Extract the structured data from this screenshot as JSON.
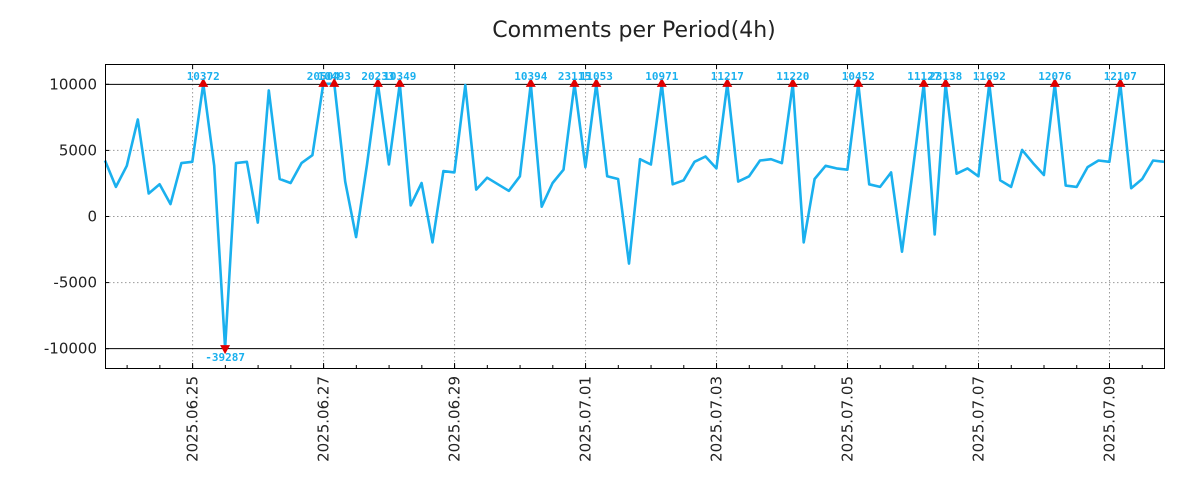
{
  "chart_data": {
    "type": "line",
    "title": "Comments per Period(4h)",
    "xlabel": "",
    "ylabel": "",
    "ylim": [
      -11500,
      11500
    ],
    "yticks": [
      -10000,
      -5000,
      0,
      5000,
      10000
    ],
    "ytick_labels": [
      "-10000",
      "-5000",
      "0",
      "5000",
      "10000"
    ],
    "clip_lines": [
      10000,
      -10000
    ],
    "x_step_days": 0.1667,
    "x_start": "2025.06.23 16:00",
    "xlim": [
      0,
      16.17
    ],
    "xticks": [
      1.33,
      3.33,
      5.33,
      7.33,
      9.33,
      11.33,
      13.33,
      15.33
    ],
    "xtick_labels": [
      "2025.06.25",
      "2025.06.27",
      "2025.06.29",
      "2025.07.01",
      "2025.07.03",
      "2025.07.05",
      "2025.07.07",
      "2025.07.09"
    ],
    "minor_step_days": 0.5,
    "grid": true,
    "colors": {
      "line": "#1ab0ee",
      "marker": "#e00000",
      "label": "#1ab0ee",
      "grid": "#9a9a9a"
    },
    "series": [
      {
        "name": "Comments",
        "values": [
          4200,
          2200,
          3800,
          7300,
          1700,
          2400,
          900,
          4000,
          4100,
          10000,
          3800,
          -10000,
          4000,
          4100,
          -500,
          9500,
          2800,
          2500,
          4000,
          4600,
          10000,
          10000,
          2600,
          -1600,
          3900,
          10000,
          3900,
          10000,
          800,
          2500,
          -2000,
          3400,
          3300,
          9900,
          2000,
          2900,
          2400,
          1900,
          3000,
          10000,
          700,
          2500,
          3500,
          10000,
          3700,
          10000,
          3000,
          2800,
          -3600,
          4300,
          3900,
          10000,
          2400,
          2700,
          4100,
          4500,
          3600,
          10000,
          2600,
          3000,
          4200,
          4300,
          4000,
          10000,
          -2000,
          2800,
          3800,
          3600,
          3500,
          10000,
          2400,
          2200,
          3300,
          -2700,
          3500,
          10000,
          -1400,
          10000,
          3200,
          3600,
          3000,
          10000,
          2700,
          2200,
          5000,
          4000,
          3100,
          10000,
          2300,
          2200,
          3700,
          4200,
          4100,
          10000,
          2100,
          2800,
          4200,
          4100
        ]
      }
    ],
    "markers": [
      {
        "index": 9,
        "label": "10372",
        "dir": "up"
      },
      {
        "index": 11,
        "label": "-39287",
        "dir": "down"
      },
      {
        "index": 20,
        "label": "20504",
        "dir": "up"
      },
      {
        "index": 21,
        "label": "10493",
        "dir": "up"
      },
      {
        "index": 25,
        "label": "20233",
        "dir": "up"
      },
      {
        "index": 27,
        "label": "10349",
        "dir": "up"
      },
      {
        "index": 39,
        "label": "10394",
        "dir": "up"
      },
      {
        "index": 43,
        "label": "23115",
        "dir": "up"
      },
      {
        "index": 45,
        "label": "11053",
        "dir": "up"
      },
      {
        "index": 51,
        "label": "10971",
        "dir": "up"
      },
      {
        "index": 57,
        "label": "11217",
        "dir": "up"
      },
      {
        "index": 63,
        "label": "11220",
        "dir": "up"
      },
      {
        "index": 69,
        "label": "10452",
        "dir": "up"
      },
      {
        "index": 75,
        "label": "11127",
        "dir": "up"
      },
      {
        "index": 77,
        "label": "23138",
        "dir": "up"
      },
      {
        "index": 81,
        "label": "11692",
        "dir": "up"
      },
      {
        "index": 87,
        "label": "12076",
        "dir": "up"
      },
      {
        "index": 93,
        "label": "12107",
        "dir": "up"
      }
    ]
  }
}
